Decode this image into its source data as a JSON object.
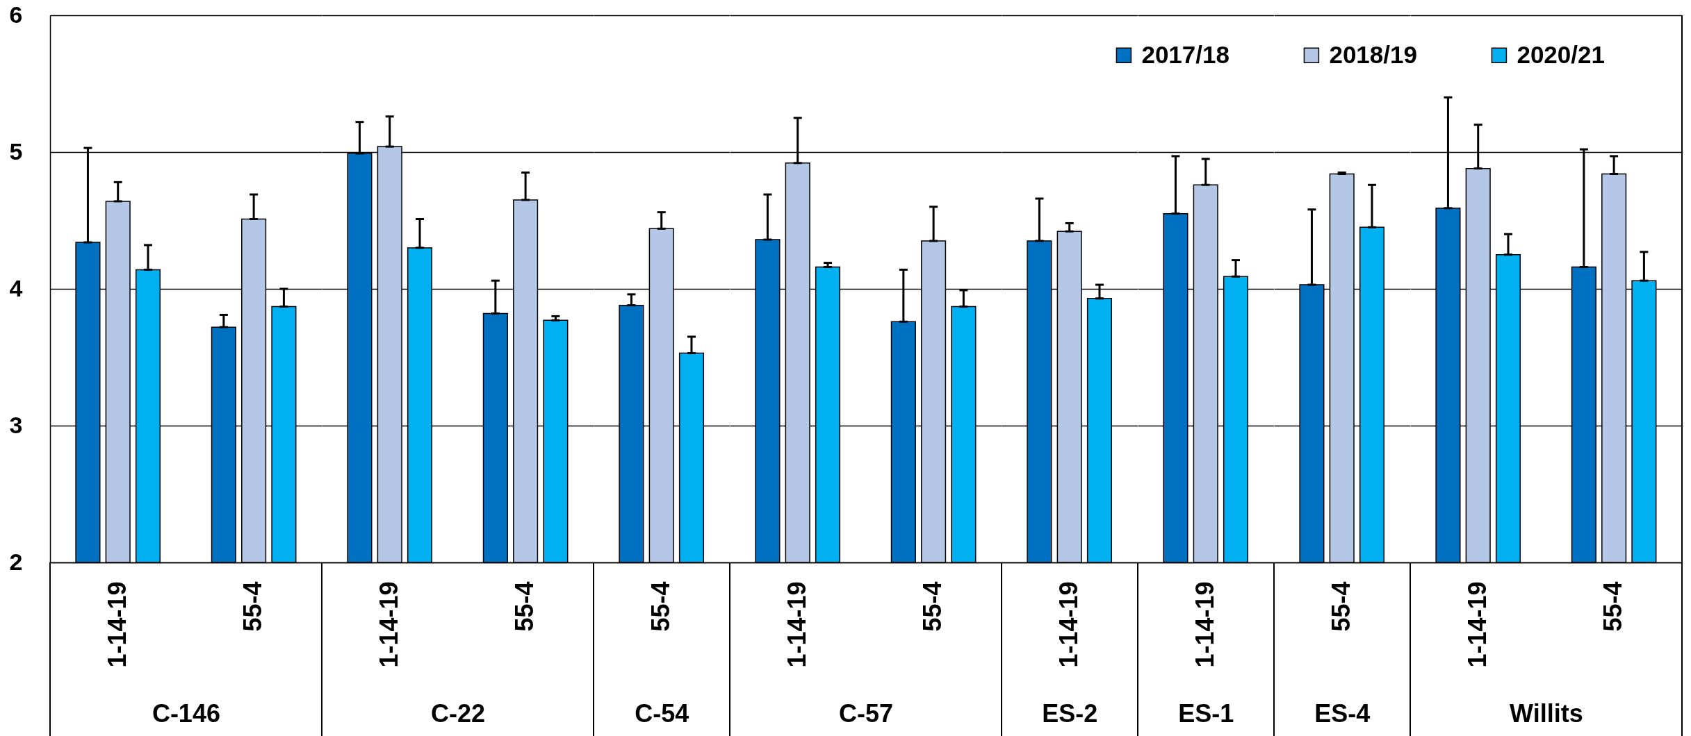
{
  "chart_data": [
    {
      "type": "bar",
      "xlabel": "C-146",
      "categories": [
        "1-14-19",
        "55-4"
      ],
      "ylim": [
        2,
        6
      ],
      "yticks": [
        2,
        3,
        4,
        5,
        6
      ],
      "grid": "y",
      "series": [
        {
          "color": "#0070c0",
          "values": [
            4.34,
            3.72
          ],
          "errors": [
            [
              4.34,
              5.03
            ],
            [
              3.72,
              3.81
            ]
          ]
        },
        {
          "color": "#b4c7e7",
          "values": [
            4.64,
            4.51
          ],
          "errors": [
            [
              4.64,
              4.78
            ],
            [
              4.51,
              4.69
            ]
          ]
        },
        {
          "color": "#00b0f0",
          "values": [
            4.14,
            3.87
          ],
          "errors": [
            [
              4.14,
              4.32
            ],
            [
              3.87,
              4.0
            ]
          ]
        }
      ]
    },
    {
      "type": "bar",
      "xlabel": "C-22",
      "categories": [
        "1-14-19",
        "55-4"
      ],
      "ylim": [
        2,
        6
      ],
      "yticks": [
        2,
        3,
        4,
        5,
        6
      ],
      "grid": "y",
      "tick_labels": "x",
      "series": [
        {
          "color": "#0070c0",
          "values": [
            4.99,
            3.82
          ],
          "errors": [
            [
              4.99,
              5.22
            ],
            [
              3.82,
              4.06
            ]
          ]
        },
        {
          "color": "#b4c7e7",
          "values": [
            5.04,
            4.65
          ],
          "errors": [
            [
              5.04,
              5.26
            ],
            [
              4.65,
              4.85
            ]
          ]
        },
        {
          "color": "#00b0f0",
          "values": [
            4.3,
            3.77
          ],
          "errors": [
            [
              4.3,
              4.51
            ],
            [
              3.77,
              3.8
            ]
          ]
        }
      ]
    },
    {
      "type": "bar",
      "xlabel": "C-54",
      "categories": [
        "55-4"
      ],
      "ylim": [
        2,
        6
      ],
      "yticks": [
        2,
        3,
        4,
        5,
        6
      ],
      "grid": "y",
      "tick_labels": "x",
      "series": [
        {
          "color": "#0070c0",
          "values": [
            3.88
          ],
          "errors": [
            [
              3.88,
              3.96
            ]
          ]
        },
        {
          "color": "#b4c7e7",
          "values": [
            4.44
          ],
          "errors": [
            [
              4.44,
              4.56
            ]
          ]
        },
        {
          "color": "#00b0f0",
          "values": [
            3.53
          ],
          "errors": [
            [
              3.53,
              3.65
            ]
          ]
        }
      ]
    },
    {
      "type": "bar",
      "xlabel": "C-57",
      "categories": [
        "1-14-19",
        "55-4"
      ],
      "ylim": [
        2,
        6
      ],
      "yticks": [
        2,
        3,
        4,
        5,
        6
      ],
      "grid": "y",
      "tick_labels": "x",
      "series": [
        {
          "color": "#0070c0",
          "values": [
            4.36,
            3.76
          ],
          "errors": [
            [
              4.36,
              4.69
            ],
            [
              3.76,
              4.14
            ]
          ]
        },
        {
          "color": "#b4c7e7",
          "values": [
            4.92,
            4.35
          ],
          "errors": [
            [
              4.92,
              5.25
            ],
            [
              4.35,
              4.6
            ]
          ]
        },
        {
          "color": "#00b0f0",
          "values": [
            4.16,
            3.87
          ],
          "errors": [
            [
              4.16,
              4.19
            ],
            [
              3.87,
              3.99
            ]
          ]
        }
      ]
    },
    {
      "type": "bar",
      "xlabel": "ES-2",
      "categories": [
        "1-14-19"
      ],
      "ylim": [
        2,
        6
      ],
      "yticks": [
        2,
        3,
        4,
        5,
        6
      ],
      "grid": "y",
      "tick_labels": "x",
      "legend": "top right",
      "series": [
        {
          "name": "2017/18",
          "color": "#0070c0",
          "values": [
            4.35
          ],
          "errors": [
            [
              4.35,
              4.66
            ]
          ]
        },
        {
          "name": "2018/19",
          "color": "#b4c7e7",
          "values": [
            4.42
          ],
          "errors": [
            [
              4.42,
              4.48
            ]
          ]
        },
        {
          "name": "2020/21",
          "color": "#00b0f0",
          "values": [
            3.93
          ],
          "errors": [
            [
              3.93,
              4.03
            ]
          ]
        }
      ]
    },
    {
      "type": "bar",
      "xlabel": "ES-1",
      "categories": [
        "1-14-19"
      ],
      "ylim": [
        2,
        6
      ],
      "yticks": [
        2,
        3,
        4,
        5,
        6
      ],
      "grid": "y",
      "tick_labels": "x",
      "series": [
        {
          "color": "#0070c0",
          "values": [
            4.55
          ],
          "errors": [
            [
              4.55,
              4.97
            ]
          ]
        },
        {
          "color": "#b4c7e7",
          "values": [
            4.76
          ],
          "errors": [
            [
              4.76,
              4.95
            ]
          ]
        },
        {
          "color": "#00b0f0",
          "values": [
            4.09
          ],
          "errors": [
            [
              4.09,
              4.21
            ]
          ]
        }
      ]
    },
    {
      "type": "bar",
      "xlabel": "ES-4",
      "categories": [
        "55-4"
      ],
      "ylim": [
        2,
        6
      ],
      "yticks": [
        2,
        3,
        4,
        5,
        6
      ],
      "grid": "y",
      "tick_labels": "x",
      "series": [
        {
          "color": "#0070c0",
          "values": [
            4.03
          ],
          "errors": [
            [
              4.03,
              4.58
            ]
          ]
        },
        {
          "color": "#b4c7e7",
          "values": [
            4.84
          ],
          "errors": [
            [
              4.84,
              4.85
            ]
          ]
        },
        {
          "color": "#00b0f0",
          "values": [
            4.45
          ],
          "errors": [
            [
              4.45,
              4.76
            ]
          ]
        }
      ]
    },
    {
      "type": "bar",
      "xlabel": "Willits",
      "categories": [
        "1-14-19",
        "55-4"
      ],
      "ylim": [
        2,
        6
      ],
      "yticks": [
        2,
        3,
        4,
        5,
        6
      ],
      "grid": "y",
      "tick_labels": "x",
      "series": [
        {
          "color": "#0070c0",
          "values": [
            4.59,
            4.16
          ],
          "errors": [
            [
              4.59,
              5.4
            ],
            [
              4.16,
              5.02
            ]
          ]
        },
        {
          "color": "#b4c7e7",
          "values": [
            4.88,
            4.84
          ],
          "errors": [
            [
              4.88,
              5.2
            ],
            [
              4.84,
              4.97
            ]
          ]
        },
        {
          "color": "#00b0f0",
          "values": [
            4.25,
            4.06
          ],
          "errors": [
            [
              4.25,
              4.4
            ],
            [
              4.06,
              4.27
            ]
          ]
        }
      ]
    }
  ]
}
